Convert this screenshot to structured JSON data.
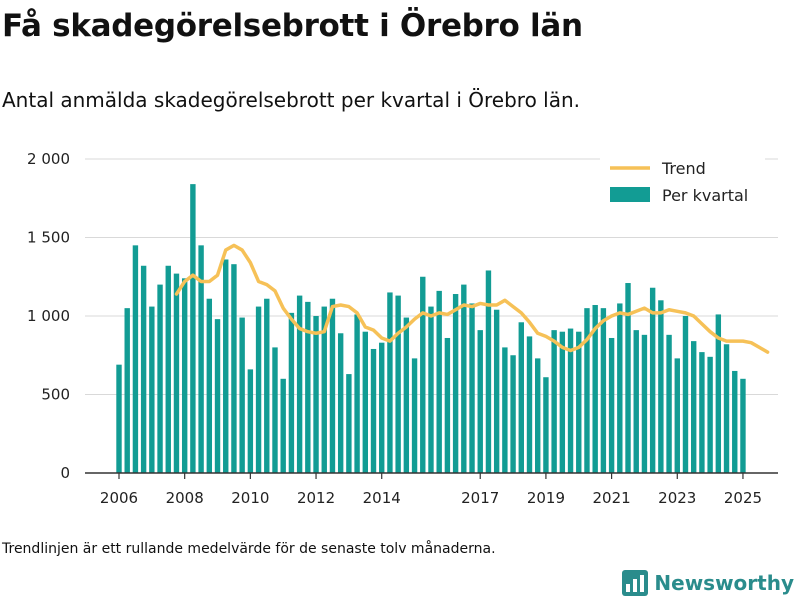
{
  "title": "Få skadegörelsebrott i Örebro län",
  "subtitle": "Antal anmälda skadegörelsebrott per kvartal i Örebro län.",
  "note": "Trendlinjen är ett rullande medelvärde för de senaste tolv månaderna.",
  "brand": {
    "name": "Newsworthy",
    "logo_icon": "bar-chart-logo-icon"
  },
  "colors": {
    "bar": "#129c94",
    "trend": "#f6c157",
    "grid": "#d9d9d9",
    "axis": "#333333",
    "brand": "#2a8c8c"
  },
  "chart_data": {
    "type": "bar",
    "x_start_year": 2006,
    "x_start_quarter": 1,
    "ylim": [
      0,
      2000
    ],
    "yticks": [
      0,
      500,
      1000,
      1500,
      2000
    ],
    "ytick_labels": [
      "0",
      "500",
      "1 000",
      "1 500",
      "2 000"
    ],
    "xticks": [
      2006,
      2008,
      2010,
      2012,
      2014,
      2017,
      2019,
      2021,
      2023,
      2025
    ],
    "grid": true,
    "legend_position": "top-right",
    "series": [
      {
        "name": "Per kvartal",
        "type": "bar",
        "values": [
          690,
          1050,
          1450,
          1320,
          1060,
          1200,
          1320,
          1270,
          1240,
          1840,
          1450,
          1110,
          980,
          1360,
          1330,
          990,
          660,
          1060,
          1110,
          800,
          600,
          1020,
          1130,
          1090,
          1000,
          1060,
          1110,
          890,
          630,
          1010,
          900,
          790,
          830,
          1150,
          1130,
          990,
          730,
          1250,
          1060,
          1160,
          860,
          1140,
          1200,
          1080,
          910,
          1290,
          1040,
          800,
          750,
          960,
          870,
          730,
          610,
          910,
          900,
          920,
          900,
          1050,
          1070,
          1050,
          860,
          1080,
          1210,
          910,
          880,
          1180,
          1100,
          880,
          730,
          1000,
          840,
          770,
          740,
          1010,
          820,
          650,
          600
        ]
      },
      {
        "name": "Trend",
        "type": "line",
        "start_index": 7,
        "values": [
          1140,
          1220,
          1260,
          1220,
          1220,
          1260,
          1420,
          1450,
          1420,
          1340,
          1220,
          1200,
          1160,
          1050,
          980,
          920,
          900,
          890,
          900,
          1060,
          1070,
          1060,
          1020,
          930,
          910,
          860,
          840,
          890,
          930,
          980,
          1020,
          1000,
          1020,
          1010,
          1040,
          1070,
          1060,
          1080,
          1070,
          1070,
          1100,
          1060,
          1020,
          960,
          890,
          870,
          840,
          800,
          780,
          800,
          850,
          920,
          970,
          1000,
          1020,
          1010,
          1030,
          1050,
          1020,
          1020,
          1040,
          1030,
          1020,
          1000,
          950,
          900,
          860,
          840,
          840,
          840,
          830,
          800,
          770
        ]
      }
    ]
  }
}
